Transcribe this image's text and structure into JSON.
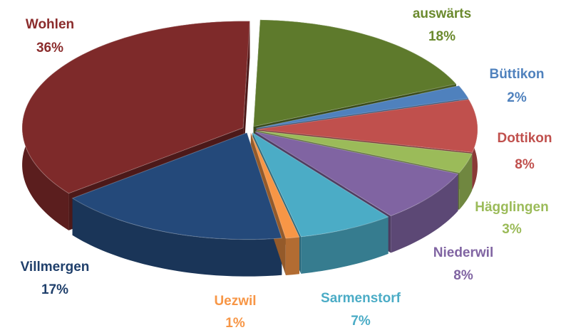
{
  "chart_data": {
    "type": "pie",
    "categories": [
      "auswärts",
      "Büttikon",
      "Dottikon",
      "Hägglingen",
      "Niederwil",
      "Sarmenstorf",
      "Uezwil",
      "Villmergen",
      "Wohlen"
    ],
    "values": [
      18,
      2,
      8,
      3,
      8,
      7,
      1,
      17,
      36
    ],
    "value_labels": [
      "18%",
      "2%",
      "8%",
      "3%",
      "8%",
      "7%",
      "1%",
      "17%",
      "36%"
    ],
    "colors": [
      "#5e7a2c",
      "#4f81bd",
      "#c0504d",
      "#9bbb59",
      "#8064a2",
      "#4bacc6",
      "#f79646",
      "#24497a",
      "#7e2a2a"
    ],
    "label_colors": [
      "#6b8a2e",
      "#4f81bd",
      "#c0504d",
      "#9bbb59",
      "#8064a2",
      "#4bacc6",
      "#f79646",
      "#1f3f6b",
      "#8b2c2c"
    ]
  }
}
